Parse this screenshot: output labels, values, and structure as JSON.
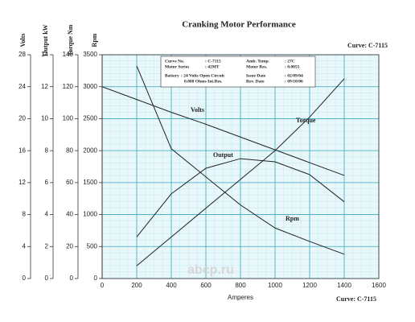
{
  "chart_data": {
    "type": "line",
    "title": "Cranking Motor Performance",
    "curve_top": "Curve: C-7115",
    "curve_bottom": "Curve: C-7115",
    "watermark": "abcp.ru",
    "xlabel": "Amperes",
    "xlim": [
      0,
      1600
    ],
    "xticks": [
      0,
      200,
      400,
      600,
      800,
      1000,
      1200,
      1400,
      1600
    ],
    "grid": true,
    "yaxes": [
      {
        "title": "Volts",
        "ylim": [
          0,
          28
        ],
        "yticks": [
          0,
          4,
          8,
          12,
          16,
          20,
          24,
          28
        ]
      },
      {
        "title": "Output kW",
        "ylim": [
          0,
          14
        ],
        "yticks": [
          0,
          2,
          4,
          6,
          8,
          10,
          12,
          14
        ]
      },
      {
        "title": "Torque Nm",
        "ylim": [
          0,
          140
        ],
        "yticks": [
          0,
          20,
          40,
          60,
          80,
          100,
          120,
          140
        ]
      },
      {
        "title": "Rpm",
        "ylim": [
          0,
          3500
        ],
        "yticks": [
          0,
          500,
          1000,
          1500,
          2000,
          2500,
          3000,
          3500
        ]
      }
    ],
    "x": [
      0,
      200,
      400,
      600,
      800,
      1000,
      1200,
      1400
    ],
    "series": [
      {
        "name": "Volts",
        "axis": 0,
        "color": "#222222",
        "values": [
          24,
          22.4,
          20.8,
          19.3,
          17.7,
          16.1,
          14.5,
          12.9
        ]
      },
      {
        "name": "Torque",
        "axis": 2,
        "color": "#222222",
        "values": [
          null,
          8,
          26,
          44,
          62,
          80,
          101,
          125
        ]
      },
      {
        "name": "Output",
        "axis": 1,
        "color": "#222222",
        "values": [
          null,
          2.6,
          5.3,
          6.9,
          7.5,
          7.3,
          6.5,
          4.8
        ]
      },
      {
        "name": "Rpm",
        "axis": 3,
        "color": "#222222",
        "values": [
          null,
          3325,
          2030,
          1590,
          1150,
          790,
          580,
          380
        ]
      }
    ],
    "info": {
      "curve_no_label": "Curve No.",
      "curve_no": ": C-7115",
      "amb_temp_label": "Amb. Temp.",
      "amb_temp": ": 27C",
      "motor_series_label": "Motor Series",
      "motor_series": ": 42MT",
      "motor_res_label": "Motor Res.",
      "motor_res": ": 0.0055",
      "battery_label": "Battery",
      "battery": ": 24 Volts Open Circuit",
      "battery_res": "0.008 Ohms Int.Res.",
      "issue_date_label": "Issue Date",
      "issue_date": ": 02/09/04",
      "rev_date_label": "Rev. Date",
      "rev_date": ": 09/10/06"
    }
  }
}
